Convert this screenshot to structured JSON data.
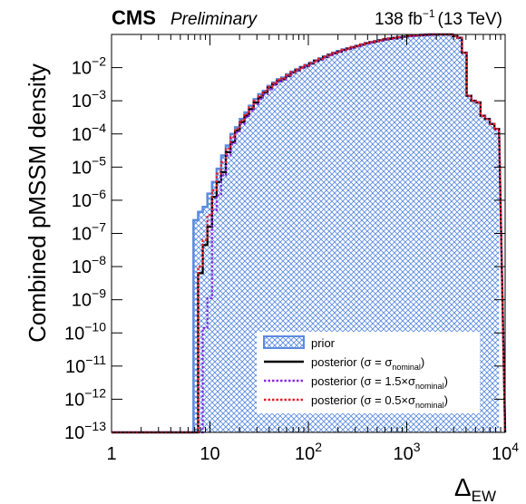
{
  "chart_data": {
    "type": "histogram",
    "header": {
      "experiment": "CMS",
      "status": "Preliminary",
      "lumi_value": "138 fb",
      "lumi_exp": "−1",
      "energy": "(13 TeV)"
    },
    "xlabel": "Δ",
    "xlabel_sub": "EW",
    "ylabel": "Combined pMSSM density",
    "x_scale": "log",
    "y_scale": "log",
    "xlim": [
      1,
      10000
    ],
    "ylim": [
      1e-13,
      0.1
    ],
    "x_ticks": [
      {
        "v": 1,
        "text": "1"
      },
      {
        "v": 10,
        "text": "10"
      },
      {
        "v": 100,
        "text": "10",
        "sup": "2"
      },
      {
        "v": 1000,
        "text": "10",
        "sup": "3"
      },
      {
        "v": 10000,
        "text": "10",
        "sup": "4"
      }
    ],
    "y_ticks": [
      {
        "e": -2,
        "text": "10",
        "sup": "−2"
      },
      {
        "e": -3,
        "text": "10",
        "sup": "−3"
      },
      {
        "e": -4,
        "text": "10",
        "sup": "−4"
      },
      {
        "e": -5,
        "text": "10",
        "sup": "−5"
      },
      {
        "e": -6,
        "text": "10",
        "sup": "−6"
      },
      {
        "e": -7,
        "text": "10",
        "sup": "−7"
      },
      {
        "e": -8,
        "text": "10",
        "sup": "−8"
      },
      {
        "e": -9,
        "text": "10",
        "sup": "−9"
      },
      {
        "e": -10,
        "text": "10",
        "sup": "−10"
      },
      {
        "e": -11,
        "text": "10",
        "sup": "−11"
      },
      {
        "e": -12,
        "text": "10",
        "sup": "−12"
      },
      {
        "e": -13,
        "text": "10",
        "sup": "−13"
      }
    ],
    "legend_position": "bottom-right",
    "legend": [
      {
        "key": "prior",
        "label": "prior"
      },
      {
        "key": "posterior",
        "label": "posterior (σ = σ",
        "sub": "nominal",
        "tail": ")"
      },
      {
        "key": "posterior_1p5",
        "label": "posterior (σ = 1.5×σ",
        "sub": "nominal",
        "tail": ")"
      },
      {
        "key": "posterior_0p5",
        "label": "posterior (σ = 0.5×σ",
        "sub": "nominal",
        "tail": ")"
      }
    ],
    "bin_edges": [
      1,
      6.8,
      7.58,
      8.45,
      9.42,
      10.5,
      11.7,
      13.0,
      14.5,
      16.2,
      18.0,
      20.1,
      22.4,
      24.9,
      27.8,
      31.0,
      34.5,
      38.5,
      42.9,
      47.8,
      53.2,
      59.3,
      66.1,
      73.6,
      82.1,
      91.5,
      102,
      114,
      127,
      141,
      157,
      175,
      195,
      218,
      243,
      270,
      301,
      336,
      374,
      417,
      465,
      518,
      577,
      643,
      717,
      799,
      890,
      992,
      1106,
      1232,
      1373,
      1530,
      1706,
      1901,
      2118,
      2361,
      2631,
      2932,
      3268,
      3642,
      4059,
      4524,
      5041,
      5618,
      6261,
      6978,
      7777,
      8667,
      10000
    ],
    "series": [
      {
        "key": "prior",
        "name": "prior",
        "color": "#5b8be0",
        "style": "hatched-fill",
        "log10_values": [
          -13,
          -6.6,
          -6.35,
          -6.2,
          -5.8,
          -5.45,
          -5.05,
          -4.65,
          -4.35,
          -4.0,
          -3.8,
          -3.55,
          -3.35,
          -3.15,
          -2.95,
          -2.8,
          -2.7,
          -2.55,
          -2.45,
          -2.35,
          -2.3,
          -2.2,
          -2.12,
          -2.05,
          -1.98,
          -1.92,
          -1.85,
          -1.78,
          -1.72,
          -1.66,
          -1.6,
          -1.55,
          -1.5,
          -1.45,
          -1.42,
          -1.38,
          -1.34,
          -1.3,
          -1.26,
          -1.23,
          -1.2,
          -1.17,
          -1.14,
          -1.12,
          -1.1,
          -1.08,
          -1.06,
          -1.04,
          -1.03,
          -1.02,
          -1.01,
          -1.0,
          -1.0,
          -1.0,
          -1.0,
          -1.0,
          -1.0,
          -1.05,
          -1.1,
          -1.55,
          -2.85,
          -3.0,
          -3.05,
          -3.45,
          -3.55,
          -3.7,
          -3.85
        ]
      },
      {
        "key": "posterior",
        "name": "posterior (σ = σnominal)",
        "color": "#000000",
        "style": "solid",
        "log10_values": [
          -13,
          -13,
          -8.2,
          -7.35,
          -6.8,
          -5.9,
          -5.45,
          -5.15,
          -4.55,
          -4.25,
          -3.9,
          -3.65,
          -3.45,
          -3.25,
          -3.05,
          -2.9,
          -2.75,
          -2.6,
          -2.5,
          -2.4,
          -2.35,
          -2.25,
          -2.15,
          -2.08,
          -2.0,
          -1.95,
          -1.88,
          -1.8,
          -1.75,
          -1.68,
          -1.62,
          -1.57,
          -1.52,
          -1.47,
          -1.43,
          -1.39,
          -1.35,
          -1.31,
          -1.27,
          -1.24,
          -1.21,
          -1.18,
          -1.15,
          -1.13,
          -1.11,
          -1.09,
          -1.07,
          -1.05,
          -1.04,
          -1.03,
          -1.02,
          -1.01,
          -1.0,
          -1.0,
          -1.0,
          -1.0,
          -1.0,
          -1.05,
          -1.1,
          -1.55,
          -2.85,
          -3.0,
          -3.05,
          -3.45,
          -3.55,
          -3.7,
          -3.85
        ]
      },
      {
        "key": "posterior_1p5",
        "name": "posterior (σ = 1.5×σnominal)",
        "color": "#8a2be2",
        "style": "dotted",
        "log10_values": [
          -13,
          -13,
          -13,
          -9.85,
          -8.95,
          -6.3,
          -5.85,
          -5.25,
          -4.65,
          -4.3,
          -3.95,
          -3.7,
          -3.5,
          -3.3,
          -3.1,
          -2.95,
          -2.8,
          -2.65,
          -2.52,
          -2.42,
          -2.36,
          -2.26,
          -2.16,
          -2.09,
          -2.01,
          -1.96,
          -1.89,
          -1.81,
          -1.76,
          -1.69,
          -1.63,
          -1.58,
          -1.53,
          -1.48,
          -1.44,
          -1.4,
          -1.36,
          -1.32,
          -1.28,
          -1.25,
          -1.22,
          -1.19,
          -1.16,
          -1.14,
          -1.12,
          -1.1,
          -1.08,
          -1.06,
          -1.05,
          -1.04,
          -1.03,
          -1.02,
          -1.01,
          -1.0,
          -1.0,
          -1.0,
          -1.0,
          -1.05,
          -1.1,
          -1.55,
          -2.85,
          -3.0,
          -3.05,
          -3.45,
          -3.55,
          -3.7,
          -3.85
        ]
      },
      {
        "key": "posterior_0p5",
        "name": "posterior (σ = 0.5×σnominal)",
        "color": "#e3212b",
        "style": "dotted",
        "log10_values": [
          -13,
          -13,
          -8.0,
          -7.2,
          -6.45,
          -5.7,
          -5.2,
          -4.85,
          -4.45,
          -4.1,
          -3.85,
          -3.6,
          -3.4,
          -3.2,
          -3.0,
          -2.85,
          -2.72,
          -2.58,
          -2.47,
          -2.37,
          -2.32,
          -2.22,
          -2.13,
          -2.06,
          -1.99,
          -1.93,
          -1.86,
          -1.79,
          -1.73,
          -1.67,
          -1.61,
          -1.56,
          -1.51,
          -1.46,
          -1.42,
          -1.38,
          -1.34,
          -1.3,
          -1.26,
          -1.23,
          -1.2,
          -1.17,
          -1.14,
          -1.12,
          -1.1,
          -1.08,
          -1.06,
          -1.04,
          -1.03,
          -1.02,
          -1.01,
          -1.0,
          -1.0,
          -1.0,
          -1.0,
          -1.0,
          -1.0,
          -1.05,
          -1.1,
          -1.55,
          -2.85,
          -3.0,
          -3.05,
          -3.45,
          -3.55,
          -3.7,
          -3.85
        ]
      }
    ]
  }
}
